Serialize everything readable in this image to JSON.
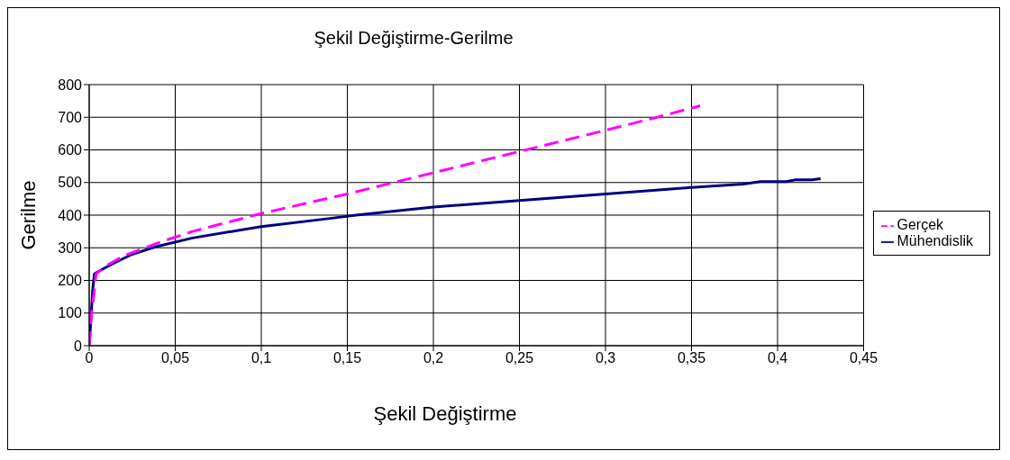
{
  "chart_data": {
    "type": "line",
    "title": "Şekil Değiştirme-Gerilme",
    "xlabel": "Şekil Değiştirme",
    "ylabel": "Gerilme",
    "xlim": [
      0,
      0.45
    ],
    "xticks": [
      0,
      {
        "value": 0.05,
        "label": "0,05"
      },
      {
        "value": 0.1,
        "label": "0,1"
      },
      {
        "value": 0.15,
        "label": "0,15"
      },
      {
        "value": 0.2,
        "label": "0,2"
      },
      {
        "value": 0.25,
        "label": "0,25"
      },
      {
        "value": 0.3,
        "label": "0,3"
      },
      {
        "value": 0.35,
        "label": "0,35"
      },
      {
        "value": 0.4,
        "label": "0,4"
      },
      {
        "value": 0.45,
        "label": "0,45"
      }
    ],
    "ylim": [
      0,
      800
    ],
    "yticks": [
      0,
      100,
      200,
      300,
      400,
      500,
      600,
      700,
      800
    ],
    "grid": true,
    "legend": "right",
    "marker": "none",
    "series": [
      {
        "name": "Mühendislik",
        "color": "#000080",
        "line_style": "solid",
        "x": [
          0,
          0.001,
          0.002,
          0.003,
          0.008,
          0.015,
          0.025,
          0.04,
          0.06,
          0.1,
          0.14,
          0.155,
          0.2,
          0.25,
          0.3,
          0.35,
          0.38,
          0.39,
          0.405,
          0.41,
          0.42,
          0.425
        ],
        "values": [
          0,
          80,
          170,
          220,
          235,
          255,
          280,
          305,
          330,
          365,
          390,
          400,
          425,
          445,
          465,
          485,
          495,
          503,
          503,
          508,
          508,
          512
        ]
      },
      {
        "name": "Gerçek",
        "color": "#ff00ff",
        "line_style": "dashed",
        "x": [
          0,
          0.001,
          0.003,
          0.004,
          0.01,
          0.02,
          0.04,
          0.06,
          0.1,
          0.15,
          0.2,
          0.25,
          0.3,
          0.33,
          0.355
        ],
        "values": [
          0,
          80,
          170,
          220,
          245,
          275,
          315,
          350,
          405,
          465,
          530,
          595,
          660,
          700,
          735
        ]
      }
    ]
  }
}
